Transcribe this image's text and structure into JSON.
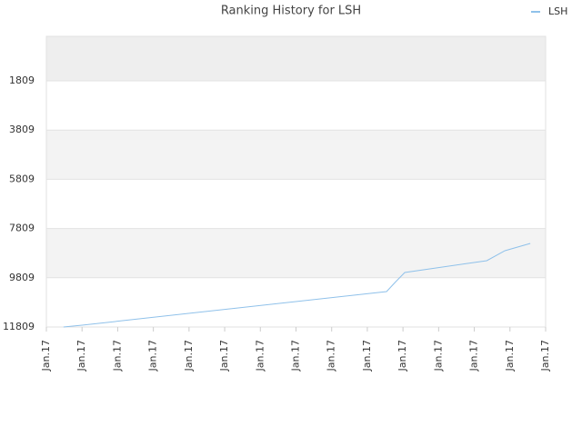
{
  "chart_data": {
    "type": "line",
    "title": "Ranking History for LSH",
    "series": [
      {
        "name": "LSH",
        "color": "#8fc1ea",
        "x": [
          0.48,
          1.0,
          9.54,
          9.8,
          10.05,
          12.35,
          12.86,
          13.57
        ],
        "values": [
          11809,
          11735,
          10370,
          9964,
          9595,
          9115,
          8709,
          8414
        ]
      }
    ],
    "xlim": [
      0,
      14
    ],
    "xticks": [
      {
        "value": 0,
        "label": "Jan.17"
      },
      {
        "value": 1,
        "label": "Jan.17"
      },
      {
        "value": 2,
        "label": "Jan.17"
      },
      {
        "value": 3,
        "label": "Jan.17"
      },
      {
        "value": 4,
        "label": "Jan.17"
      },
      {
        "value": 5,
        "label": "Jan.17"
      },
      {
        "value": 6,
        "label": "Jan.17"
      },
      {
        "value": 7,
        "label": "Jan.17"
      },
      {
        "value": 8,
        "label": "Jan.17"
      },
      {
        "value": 9,
        "label": "Jan.17"
      },
      {
        "value": 10,
        "label": "Jan.17"
      },
      {
        "value": 11,
        "label": "Jan.17"
      },
      {
        "value": 12,
        "label": "Jan.17"
      },
      {
        "value": 13,
        "label": "Jan.17"
      },
      {
        "value": 14,
        "label": "Jan.17"
      }
    ],
    "ylim": [
      11809,
      1
    ],
    "yticks": [
      1809,
      3809,
      5809,
      7809,
      9809,
      11809
    ],
    "grid": true,
    "legend": "top-right"
  }
}
